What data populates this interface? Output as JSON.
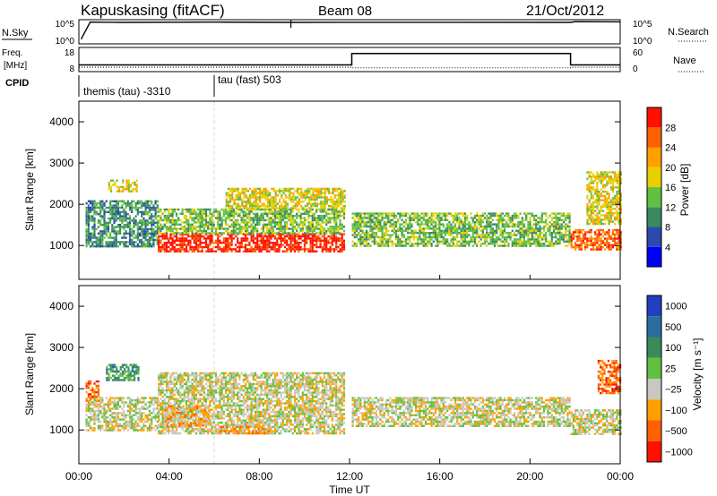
{
  "header": {
    "station": "Kapuskasing (fitACF)",
    "beam": "Beam 08",
    "date": "21/Oct/2012"
  },
  "noise_panel": {
    "left_label": "N.Sky",
    "right_label": "N.Search",
    "left_ticks": [
      "10^5",
      "10^0"
    ],
    "right_ticks": [
      "10^5",
      "10^0"
    ]
  },
  "freq_panel": {
    "left_label_1": "Freq.",
    "left_label_2": "[MHz]",
    "right_label": "Nave",
    "left_ticks": [
      "18",
      "8"
    ],
    "right_ticks": [
      "60",
      "0"
    ]
  },
  "cpid_panel": {
    "label": "CPID",
    "segments": [
      {
        "name": "themis (tau) -3310"
      },
      {
        "name": "tau (fast) 503"
      }
    ]
  },
  "power_panel": {
    "ylabel": "Slant Range [km]",
    "yticks": [
      "1000",
      "2000",
      "3000",
      "4000"
    ],
    "colorbar_label": "Power [dB]",
    "colorbar_ticks": [
      "4",
      "8",
      "12",
      "16",
      "20",
      "24",
      "28"
    ],
    "colors": [
      "#0000ff",
      "#2a4ab0",
      "#3a8a60",
      "#60c040",
      "#e8d000",
      "#ffa000",
      "#ff6000",
      "#ff1000"
    ]
  },
  "velocity_panel": {
    "ylabel": "Slant Range [km]",
    "yticks": [
      "1000",
      "2000",
      "3000",
      "4000"
    ],
    "colorbar_label": "Velocity [m s⁻¹]",
    "colorbar_ticks": [
      "1000",
      "500",
      "100",
      "25",
      "−25",
      "−100",
      "−500",
      "−1000"
    ],
    "colors": [
      "#2040c0",
      "#2a6ea0",
      "#3a8a5a",
      "#60c040",
      "#c8c8c0",
      "#ffa000",
      "#ff6000",
      "#ff1000"
    ]
  },
  "xaxis": {
    "label": "Time UT",
    "ticks": [
      "00:00",
      "04:00",
      "08:00",
      "12:00",
      "16:00",
      "20:00",
      "00:00"
    ]
  },
  "chart_data": [
    {
      "type": "line",
      "panel": "noise",
      "series": [
        {
          "name": "N.Sky",
          "x": [
            0.1,
            0.5,
            2,
            6,
            9.5,
            14,
            21.8,
            22,
            24
          ],
          "y": [
            5,
            70000,
            60000,
            70000,
            60000,
            65000,
            60000,
            90000,
            80000
          ]
        }
      ]
    },
    {
      "type": "line",
      "panel": "frequency",
      "series": [
        {
          "name": "Freq.",
          "x": [
            0,
            12.1,
            12.1,
            21.8,
            21.8,
            24
          ],
          "y": [
            10.5,
            10.5,
            16.3,
            16.3,
            10.5,
            10.5
          ]
        },
        {
          "name": "Nave",
          "x": [
            0,
            12.1,
            12.1,
            21.8,
            21.8,
            24
          ],
          "y": [
            8,
            8,
            6,
            6,
            8,
            8
          ]
        }
      ]
    },
    {
      "type": "heatmap",
      "panel": "power",
      "x_range": [
        0,
        24
      ],
      "y_range": [
        180,
        4500
      ],
      "bands": [
        {
          "t0": 0.3,
          "t1": 3.5,
          "r0": 1000,
          "r1": 2100,
          "level": 2
        },
        {
          "t0": 1.3,
          "t1": 2.6,
          "r0": 2300,
          "r1": 2600,
          "level": 4
        },
        {
          "t0": 3.5,
          "t1": 11.8,
          "r0": 850,
          "r1": 1300,
          "level": 7
        },
        {
          "t0": 3.5,
          "t1": 11.8,
          "r0": 1300,
          "r1": 1900,
          "level": 3
        },
        {
          "t0": 6.5,
          "t1": 11.8,
          "r0": 1900,
          "r1": 2400,
          "level": 4
        },
        {
          "t0": 12.1,
          "t1": 21.8,
          "r0": 1000,
          "r1": 1800,
          "level": 3
        },
        {
          "t0": 21.8,
          "t1": 24,
          "r0": 900,
          "r1": 1400,
          "level": 6
        },
        {
          "t0": 22.5,
          "t1": 24,
          "r0": 1500,
          "r1": 2800,
          "level": 4
        }
      ]
    },
    {
      "type": "heatmap",
      "panel": "velocity",
      "x_range": [
        0,
        24
      ],
      "y_range": [
        180,
        4500
      ],
      "bands": [
        {
          "t0": 0.3,
          "t1": 3.5,
          "r0": 1000,
          "r1": 1800,
          "level": 4
        },
        {
          "t0": 0.3,
          "t1": 0.9,
          "r0": 1700,
          "r1": 2200,
          "level": 6
        },
        {
          "t0": 1.2,
          "t1": 2.6,
          "r0": 2200,
          "r1": 2600,
          "level": 2
        },
        {
          "t0": 3.5,
          "t1": 11.8,
          "r0": 900,
          "r1": 2400,
          "level": 4
        },
        {
          "t0": 3.8,
          "t1": 5.8,
          "r0": 1100,
          "r1": 1600,
          "level": 5
        },
        {
          "t0": 6.0,
          "t1": 8.5,
          "r0": 900,
          "r1": 1100,
          "level": 5
        },
        {
          "t0": 12.1,
          "t1": 21.8,
          "r0": 1100,
          "r1": 1800,
          "level": 4
        },
        {
          "t0": 21.8,
          "t1": 24,
          "r0": 900,
          "r1": 1500,
          "level": 4
        },
        {
          "t0": 23.0,
          "t1": 24,
          "r0": 1900,
          "r1": 2700,
          "level": 6
        }
      ]
    }
  ]
}
